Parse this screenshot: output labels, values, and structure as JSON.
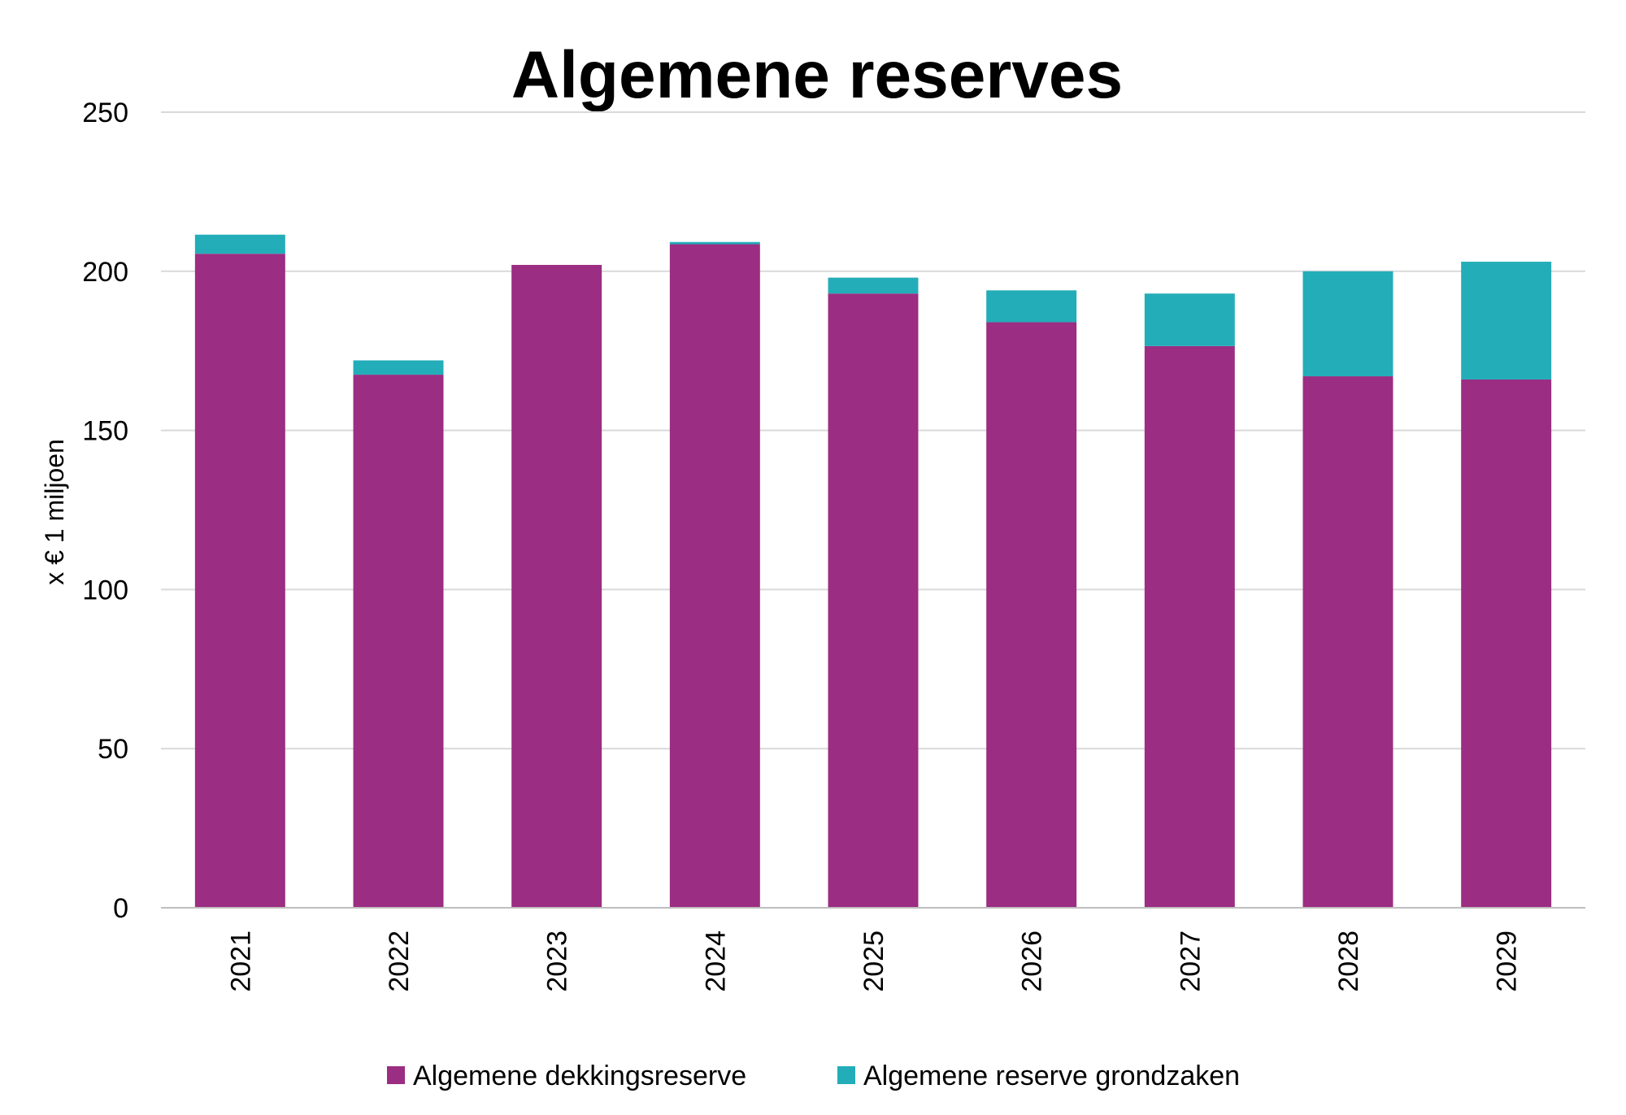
{
  "chart_data": {
    "type": "bar",
    "stacked": true,
    "title": "Algemene reserves",
    "xlabel": "",
    "ylabel": "x € 1 miljoen",
    "ylim": [
      0,
      250
    ],
    "yticks": [
      "0",
      "50",
      "100",
      "150",
      "200",
      "250"
    ],
    "grid": true,
    "legend_position": "bottom",
    "categories": [
      "2021",
      "2022",
      "2023",
      "2024",
      "2025",
      "2026",
      "2027",
      "2028",
      "2029"
    ],
    "series": [
      {
        "name": "Algemene dekkingsreserve",
        "color": "#9B2D82",
        "values": [
          205.5,
          167.5,
          202,
          208.5,
          193,
          184,
          176.5,
          167,
          166
        ]
      },
      {
        "name": "Algemene reserve grondzaken",
        "color": "#23ADB8",
        "values": [
          6,
          4.5,
          0,
          0.7,
          5,
          10,
          16.5,
          33,
          37
        ]
      }
    ]
  },
  "colors": {
    "gridline": "#D9D9D9",
    "axis": "#BFBFBF",
    "text": "#000000"
  }
}
